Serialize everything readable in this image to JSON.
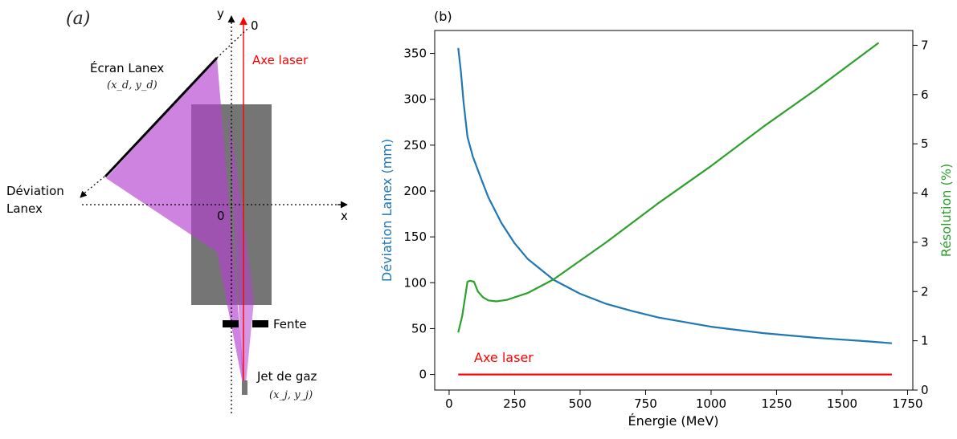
{
  "left_panel": {
    "label": "(a)",
    "origin_top": "0",
    "axis_y": "y",
    "axis_x": "x",
    "origin_center": "0",
    "laser_axis": "Axe laser",
    "screen_title": "Écran Lanex",
    "screen_coords": "(x_d, y_d)",
    "deviation_line1": "Déviation",
    "deviation_line2": "Lanex",
    "slit": "Fente",
    "gas_jet": "Jet de gaz",
    "gas_coords": "(x_j, y_j)"
  },
  "chart_data": {
    "type": "line",
    "panel_label": "(b)",
    "xlabel": "Énergie (MeV)",
    "ylabel_left": "Déviation Lanex (mm)",
    "ylabel_right": "Résolution (%)",
    "xlim": [
      -55,
      1770
    ],
    "ylim_left": [
      -17,
      375
    ],
    "ylim_right": [
      0,
      7.3
    ],
    "xticks": [
      0,
      250,
      500,
      750,
      1000,
      1250,
      1500,
      1750
    ],
    "yticks_left": [
      0,
      50,
      100,
      150,
      200,
      250,
      300,
      350
    ],
    "yticks_right": [
      0,
      1,
      2,
      3,
      4,
      5,
      6,
      7
    ],
    "annotation": "Axe laser",
    "colors": {
      "deviation": "#1f77b4",
      "resolution": "#2ca02c",
      "laser": "#ff0000"
    },
    "series": [
      {
        "axis": "left",
        "x": [
          35,
          45,
          55,
          70,
          90,
          120,
          150,
          200,
          250,
          300,
          400,
          500,
          600,
          700,
          800,
          1000,
          1200,
          1400,
          1600,
          1690
        ],
        "y": [
          356,
          330,
          297,
          259,
          238,
          215,
          193,
          165,
          143,
          126,
          103,
          88,
          77,
          69,
          62,
          52,
          45,
          40,
          36,
          34
        ]
      },
      {
        "axis": "right",
        "x": [
          35,
          50,
          70,
          80,
          95,
          110,
          130,
          150,
          180,
          220,
          300,
          400,
          600,
          800,
          1000,
          1200,
          1400,
          1640
        ],
        "y": [
          1.17,
          1.5,
          2.2,
          2.22,
          2.2,
          2.0,
          1.88,
          1.82,
          1.8,
          1.83,
          1.97,
          2.25,
          3.0,
          3.8,
          4.55,
          5.35,
          6.1,
          7.05
        ]
      },
      {
        "axis": "left",
        "x": [
          35,
          1690
        ],
        "y": [
          0,
          0
        ]
      }
    ]
  }
}
